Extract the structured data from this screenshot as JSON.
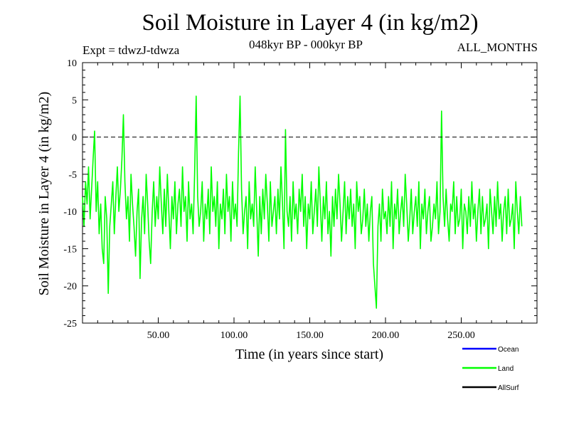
{
  "chart_data": {
    "type": "line",
    "title": "Soil Moisture in Layer 4 (in kg/m2)",
    "subtitle": "048kyr BP - 000kyr BP",
    "experiment": "Expt = tdwzJ-tdwza",
    "period": "ALL_MONTHS",
    "xlabel": "Time (in years since start)",
    "ylabel": "Soil Moisture in Layer 4 (in kg/m2)",
    "xlim": [
      0,
      300
    ],
    "ylim": [
      -25,
      10
    ],
    "x_ticks": [
      50,
      100,
      150,
      200,
      250
    ],
    "x_tick_labels": [
      "50.00",
      "100.00",
      "150.00",
      "200.00",
      "250.00"
    ],
    "y_ticks": [
      -25,
      -20,
      -15,
      -10,
      -5,
      0,
      5,
      10
    ],
    "y_tick_labels": [
      "-25",
      "-20",
      "-15",
      "-10",
      "-5",
      "0",
      "5",
      "10"
    ],
    "reference_line": 0,
    "series": [
      {
        "name": "Ocean",
        "color": "#0000ff",
        "values": []
      },
      {
        "name": "Land",
        "color": "#00ff00",
        "x_start": 0,
        "x_step": 1,
        "values": [
          -8,
          -12,
          -6,
          -9,
          -4,
          -11,
          -7,
          -3,
          0.8,
          -10,
          -6,
          -13,
          -9,
          -15,
          -17,
          -8,
          -11,
          -21,
          -12,
          -9,
          -6,
          -13,
          -8,
          -4,
          -10,
          -7,
          -3,
          3,
          -6,
          -11,
          -8,
          -14,
          -5,
          -9,
          -12,
          -16,
          -10,
          -7,
          -19,
          -11,
          -8,
          -13,
          -5,
          -9,
          -14,
          -17,
          -10,
          -6,
          -12,
          -8,
          -11,
          -4,
          -9,
          -13,
          -7,
          -12,
          -5,
          -10,
          -15,
          -8,
          -11,
          -6,
          -13,
          -9,
          -7,
          -12,
          -4,
          -10,
          -8,
          -14,
          -6,
          -11,
          -9,
          -13,
          -5,
          5.5,
          -8,
          -12,
          -10,
          -6,
          -14,
          -9,
          -11,
          -7,
          -13,
          -4,
          -10,
          -8,
          -12,
          -6,
          -15,
          -9,
          -11,
          -7,
          -13,
          -5,
          -10,
          -8,
          -14,
          -6,
          -11,
          -9,
          -12,
          -2,
          5.5,
          -7,
          -13,
          -10,
          -8,
          -15,
          -6,
          -11,
          -9,
          -12,
          -4,
          -10,
          -16,
          -8,
          -13,
          -7,
          -11,
          -5,
          -9,
          -14,
          -6,
          -12,
          -10,
          -8,
          -13,
          -7,
          -11,
          -4,
          -9,
          -15,
          1,
          -10,
          -12,
          -8,
          -14,
          -6,
          -11,
          -9,
          -13,
          -7,
          -10,
          -5,
          -12,
          -8,
          -15,
          -9,
          -11,
          -6,
          -13,
          -10,
          -7,
          -12,
          -4,
          -9,
          -14,
          -8,
          -11,
          -6,
          -13,
          -10,
          -16,
          -8,
          -12,
          -7,
          -11,
          -5,
          -9,
          -14,
          -10,
          -6,
          -13,
          -8,
          -11,
          -7,
          -12,
          -9,
          -15,
          -6,
          -10,
          -8,
          -13,
          -11,
          -7,
          -12,
          -9,
          -14,
          -10,
          -8,
          -17,
          -20,
          -23,
          -12,
          -9,
          -14,
          -7,
          -11,
          -10,
          -13,
          -8,
          -12,
          -6,
          -15,
          -9,
          -11,
          -7,
          -13,
          -10,
          -8,
          -12,
          -5,
          -9,
          -14,
          -11,
          -7,
          -13,
          -10,
          -8,
          -12,
          -6,
          -15,
          -9,
          -11,
          -7,
          -13,
          -10,
          -8,
          -14,
          -12,
          -9,
          -11,
          -6,
          -13,
          -10,
          3.5,
          -8,
          -12,
          -7,
          -11,
          -14,
          -9,
          -10,
          -6,
          -13,
          -8,
          -12,
          -11,
          -7,
          -15,
          -9,
          -10,
          -13,
          -8,
          -12,
          -6,
          -11,
          -9,
          -14,
          -10,
          -7,
          -13,
          -8,
          -12,
          -11,
          -9,
          -15,
          -7,
          -10,
          -13,
          -8,
          -12,
          -6,
          -11,
          -9,
          -14,
          -10,
          -8,
          -13,
          -7,
          -12,
          -11,
          -9,
          -15,
          -6,
          -10,
          -13,
          -8,
          -12
        ]
      },
      {
        "name": "AllSurf",
        "color": "#000000",
        "values": []
      }
    ],
    "grid": false,
    "legend_position": "bottom-right"
  }
}
